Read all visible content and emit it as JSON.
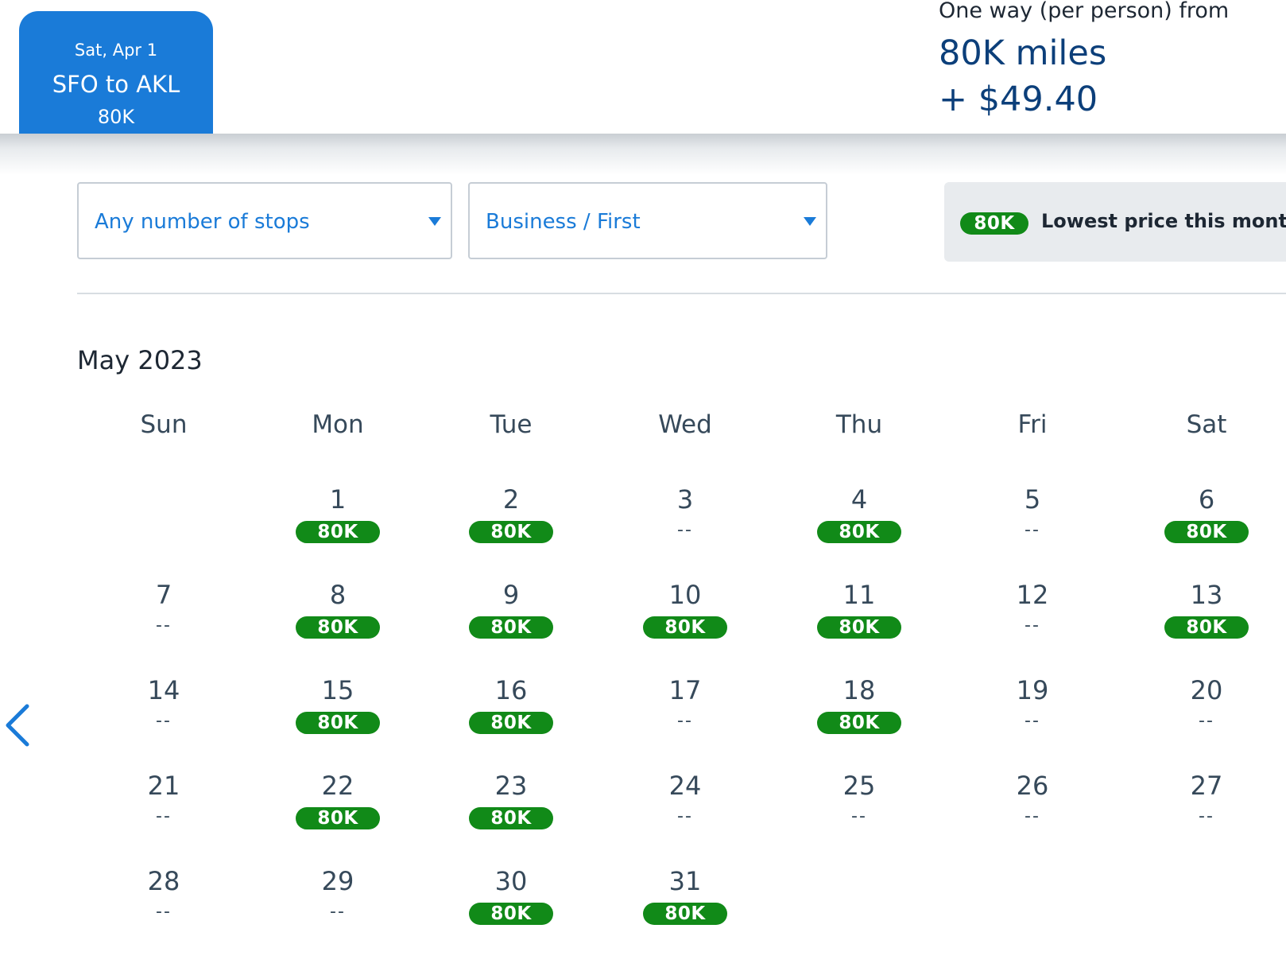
{
  "selected_tab": {
    "date": "Sat, Apr 1",
    "route": "SFO to AKL",
    "price": "80K"
  },
  "fare": {
    "label": "One way (per person) from",
    "miles": "80K miles",
    "cash": "+ $49.40"
  },
  "filters": {
    "stops": "Any number of stops",
    "cabin": "Business / First"
  },
  "legend": {
    "badge": "80K",
    "text": "Lowest price this month"
  },
  "calendar": {
    "month": "May 2023",
    "weekdays": [
      "Sun",
      "Mon",
      "Tue",
      "Wed",
      "Thu",
      "Fri",
      "Sat"
    ],
    "first_weekday_index": 1,
    "no_price": "--",
    "days": [
      {
        "day": "1",
        "price": "80K"
      },
      {
        "day": "2",
        "price": "80K"
      },
      {
        "day": "3",
        "price": null
      },
      {
        "day": "4",
        "price": "80K"
      },
      {
        "day": "5",
        "price": null
      },
      {
        "day": "6",
        "price": "80K"
      },
      {
        "day": "7",
        "price": null
      },
      {
        "day": "8",
        "price": "80K"
      },
      {
        "day": "9",
        "price": "80K"
      },
      {
        "day": "10",
        "price": "80K"
      },
      {
        "day": "11",
        "price": "80K"
      },
      {
        "day": "12",
        "price": null
      },
      {
        "day": "13",
        "price": "80K"
      },
      {
        "day": "14",
        "price": null
      },
      {
        "day": "15",
        "price": "80K"
      },
      {
        "day": "16",
        "price": "80K"
      },
      {
        "day": "17",
        "price": null
      },
      {
        "day": "18",
        "price": "80K"
      },
      {
        "day": "19",
        "price": null
      },
      {
        "day": "20",
        "price": null
      },
      {
        "day": "21",
        "price": null
      },
      {
        "day": "22",
        "price": "80K"
      },
      {
        "day": "23",
        "price": "80K"
      },
      {
        "day": "24",
        "price": null
      },
      {
        "day": "25",
        "price": null
      },
      {
        "day": "26",
        "price": null
      },
      {
        "day": "27",
        "price": null
      },
      {
        "day": "28",
        "price": null
      },
      {
        "day": "29",
        "price": null
      },
      {
        "day": "30",
        "price": "80K"
      },
      {
        "day": "31",
        "price": "80K"
      }
    ]
  },
  "icons": {
    "prev": "chevron-left-icon",
    "dropdown": "caret-down-icon"
  },
  "colors": {
    "accent": "#1a7bd8",
    "price_green": "#118a18",
    "fare_blue": "#0c3f7a"
  }
}
